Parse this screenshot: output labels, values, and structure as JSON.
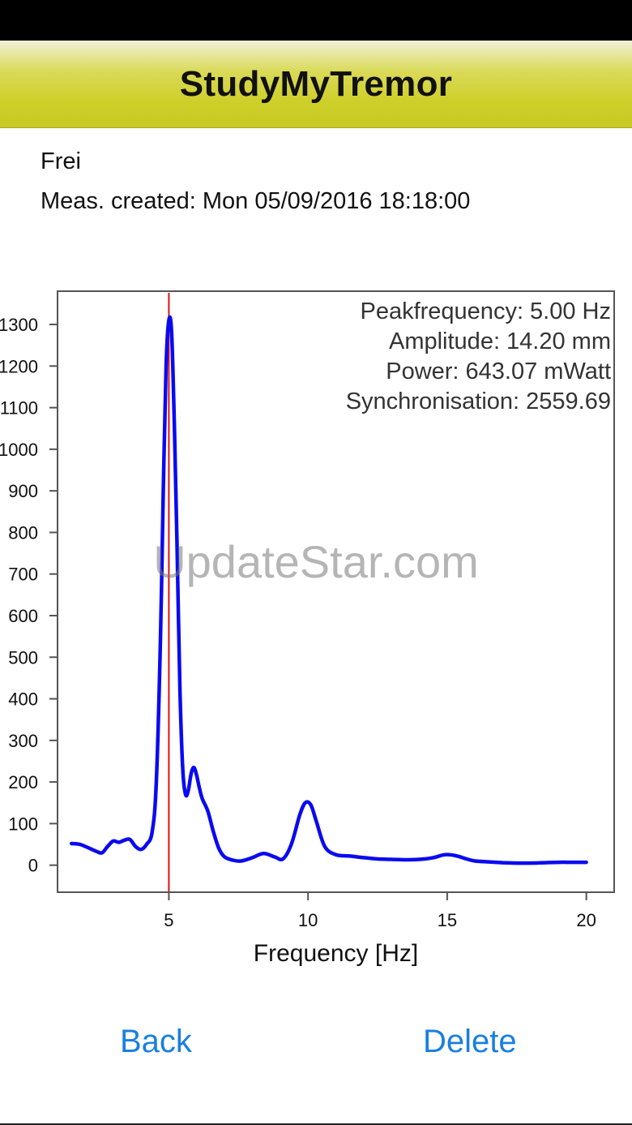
{
  "nav": {
    "title": "StudyMyTremor"
  },
  "measurement": {
    "name": "Frei",
    "created": "Meas. created: Mon 05/09/2016 18:18:00"
  },
  "stats": {
    "peak": "Peakfrequency: 5.00 Hz",
    "amplitude": "Amplitude: 14.20 mm",
    "power": "Power: 643.07 mWatt",
    "sync": "Synchronisation: 2559.69"
  },
  "watermark": "UpdateStar.com",
  "buttons": {
    "back": "Back",
    "delete": "Delete"
  },
  "colors": {
    "series": "#0a0af0",
    "peak_line": "#e01010",
    "link": "#1a7fe0"
  },
  "chart_data": {
    "type": "line",
    "xlabel": "Frequency [Hz]",
    "ylabel": "",
    "xlim": [
      1.0,
      21.0
    ],
    "ylim": [
      -65,
      1380
    ],
    "xticks": [
      5,
      10,
      15,
      20
    ],
    "yticks": [
      0,
      100,
      200,
      300,
      400,
      500,
      600,
      700,
      800,
      900,
      1000,
      1100,
      1200,
      1300
    ],
    "peak_marker_x": 5.0,
    "series": [
      {
        "x": [
          1.5,
          1.8,
          2.1,
          2.4,
          2.6,
          2.8,
          3.0,
          3.2,
          3.4,
          3.6,
          3.8,
          4.0,
          4.2,
          4.4,
          4.55,
          4.7,
          4.8,
          4.9,
          5.0,
          5.1,
          5.2,
          5.3,
          5.4,
          5.5,
          5.6,
          5.7,
          5.8,
          5.9,
          6.0,
          6.1,
          6.2,
          6.4,
          6.6,
          6.8,
          7.0,
          7.3,
          7.6,
          8.0,
          8.4,
          8.8,
          9.1,
          9.4,
          9.7,
          9.9,
          10.1,
          10.3,
          10.6,
          11.0,
          11.5,
          12.0,
          12.5,
          13.0,
          13.5,
          14.0,
          14.5,
          14.9,
          15.3,
          15.7,
          16.0,
          16.5,
          17.0,
          17.5,
          18.0,
          18.5,
          19.0,
          19.5,
          20.0
        ],
        "values": [
          52,
          50,
          42,
          33,
          30,
          45,
          58,
          55,
          60,
          62,
          45,
          38,
          50,
          80,
          200,
          550,
          900,
          1200,
          1310,
          1280,
          1050,
          750,
          420,
          230,
          170,
          180,
          220,
          235,
          215,
          185,
          160,
          130,
          80,
          40,
          20,
          12,
          10,
          18,
          28,
          20,
          15,
          50,
          120,
          150,
          145,
          105,
          45,
          25,
          22,
          18,
          15,
          14,
          13,
          14,
          18,
          25,
          23,
          15,
          10,
          8,
          6,
          5,
          5,
          6,
          7,
          7,
          7
        ]
      }
    ]
  }
}
